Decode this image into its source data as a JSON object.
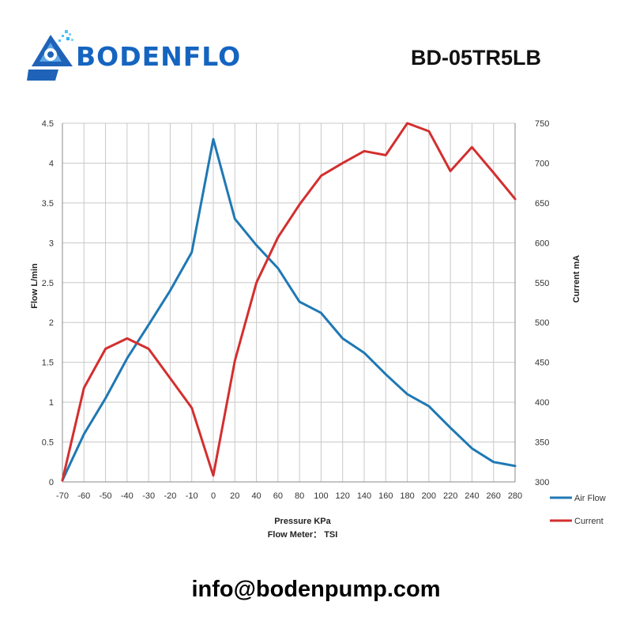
{
  "brand": {
    "name": "BODENFLO",
    "accent": "#1565c0"
  },
  "model": "BD-05TR5LB",
  "footer": {
    "email": "info@bodenpump.com"
  },
  "chart_data": {
    "type": "line",
    "x": [
      -70,
      -60,
      -50,
      -40,
      -30,
      -20,
      -10,
      0,
      20,
      40,
      60,
      80,
      100,
      120,
      140,
      160,
      180,
      200,
      220,
      240,
      260,
      280
    ],
    "xlabel": "Pressure KPa",
    "subtitle": "Flow Meter： TSI",
    "ylabel": "Flow  L/min",
    "y2label": "Current  mA",
    "ylim": [
      0,
      4.5
    ],
    "y2lim": [
      300,
      750
    ],
    "yticks": [
      "0",
      "0.5",
      "1",
      "1.5",
      "2",
      "2.5",
      "3",
      "3.5",
      "4",
      "4.5"
    ],
    "y2ticks": [
      "300",
      "350",
      "400",
      "450",
      "500",
      "550",
      "600",
      "650",
      "700",
      "750"
    ],
    "grid": true,
    "legend": "right",
    "series": [
      {
        "name": "Air Flow",
        "axis": "left",
        "color": "#1f78b4",
        "values": [
          0.02,
          0.6,
          1.05,
          1.55,
          1.97,
          2.4,
          2.88,
          4.3,
          3.3,
          2.97,
          2.68,
          2.26,
          2.12,
          1.8,
          1.62,
          1.35,
          1.1,
          0.95,
          0.68,
          0.42,
          0.25,
          0.2
        ]
      },
      {
        "name": "Current",
        "axis": "right",
        "color": "#d32f2f",
        "values": [
          302,
          418,
          467,
          480,
          467,
          430,
          393,
          308,
          452,
          550,
          607,
          648,
          684,
          700,
          715,
          710,
          750,
          740,
          690,
          720,
          688,
          655
        ]
      }
    ]
  }
}
